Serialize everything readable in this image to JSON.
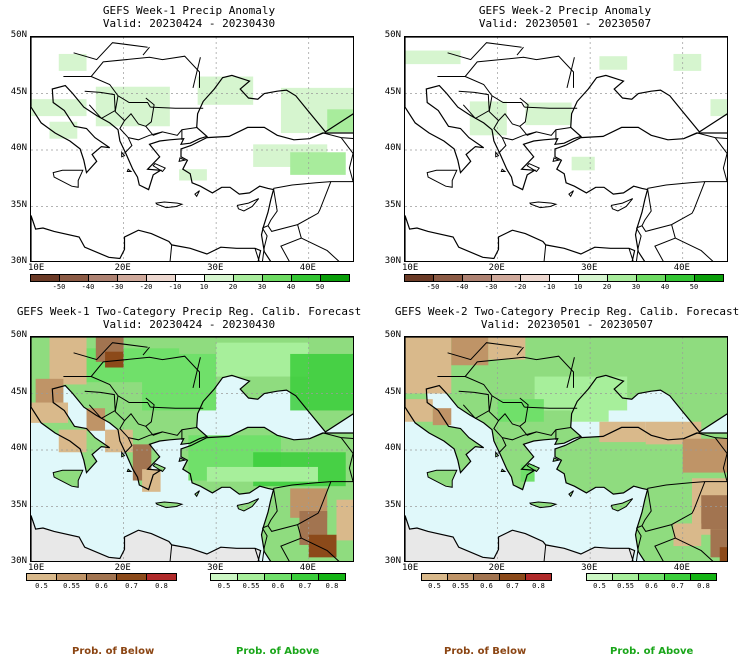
{
  "panels": [
    {
      "title": "GEFS Week-1 Precip Anomaly",
      "valid": "Valid: 20230424 - 20230430",
      "kind": "anomaly"
    },
    {
      "title": "GEFS Week-2 Precip Anomaly",
      "valid": "Valid: 20230501 - 20230507",
      "kind": "anomaly"
    },
    {
      "title": "GEFS Week-1 Two-Category Precip Reg. Calib. Forecast",
      "valid": "Valid: 20230424 - 20230430",
      "kind": "prob"
    },
    {
      "title": "GEFS Week-2 Two-Category Precip Reg. Calib. Forecast",
      "valid": "Valid: 20230501 - 20230507",
      "kind": "prob"
    }
  ],
  "axes": {
    "lat_labels": [
      "50N",
      "45N",
      "40N",
      "35N",
      "30N"
    ],
    "lon_labels": [
      "10E",
      "20E",
      "30E",
      "40E"
    ]
  },
  "anomaly_colorbar": {
    "labels": [
      "-50",
      "-40",
      "-30",
      "-20",
      "-10",
      "10",
      "20",
      "30",
      "40",
      "50"
    ],
    "colors": [
      "#6b3a26",
      "#8b5a44",
      "#ae8272",
      "#cfa99b",
      "#ecd7cf",
      "#ffffff",
      "#d6f5cf",
      "#a8ec9c",
      "#6ddb62",
      "#34c634",
      "#0a9e0a"
    ]
  },
  "below_colorbar": {
    "labels": [
      "0.5",
      "0.55",
      "0.6",
      "0.7",
      "0.8"
    ],
    "colors": [
      "#d9b98b",
      "#bf9467",
      "#a27450",
      "#8c4a1a",
      "#b02a2a"
    ]
  },
  "above_colorbar": {
    "labels": [
      "0.5",
      "0.55",
      "0.6",
      "0.7",
      "0.8"
    ],
    "colors": [
      "#ccf7c4",
      "#a7ef9b",
      "#70e06a",
      "#3bce3b",
      "#14b414"
    ]
  },
  "prob_labels": {
    "below": "Prob. of Below",
    "above": "Prob. of Above",
    "below_color": "#8b4513",
    "above_color": "#1aa61a"
  },
  "colors": {
    "sea": "#e0f8fa",
    "land_nodata": "#e8e8e8",
    "coast": "#000000",
    "grid": "#9a9a9a"
  }
}
